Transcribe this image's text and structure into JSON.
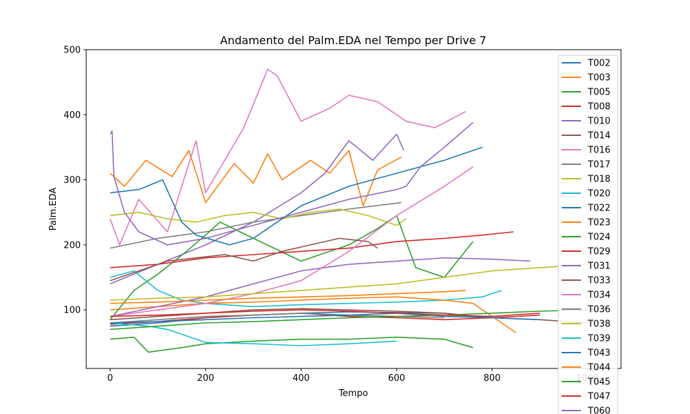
{
  "chart_data": {
    "type": "line",
    "title": "Andamento del Palm.EDA nel Tempo per Drive 7",
    "xlabel": "Tempo",
    "ylabel": "Palm.EDA",
    "xlim": [
      -50,
      1070
    ],
    "ylim": [
      10,
      500
    ],
    "xticks": [
      0,
      200,
      400,
      600,
      800,
      1000
    ],
    "xtick_labels": [
      "0",
      "200",
      "400",
      "600",
      "800",
      "1000"
    ],
    "yticks": [
      100,
      200,
      300,
      400,
      500
    ],
    "ytick_labels": [
      "100",
      "200",
      "300",
      "400",
      "500"
    ],
    "grid": false,
    "legend_position": "upper-right",
    "series": [
      {
        "name": "T002",
        "color": "#1f77b4",
        "x": [
          0,
          100,
          200,
          300,
          400,
          500,
          600,
          700,
          760
        ],
        "y": [
          75,
          80,
          88,
          92,
          95,
          97,
          96,
          95,
          90
        ]
      },
      {
        "name": "T003",
        "color": "#ff7f0e",
        "x": [
          0,
          30,
          75,
          130,
          165,
          200,
          260,
          300,
          330,
          360,
          420,
          460,
          500,
          530,
          560,
          610
        ],
        "y": [
          310,
          290,
          330,
          305,
          345,
          265,
          325,
          295,
          340,
          300,
          330,
          310,
          345,
          260,
          315,
          335
        ]
      },
      {
        "name": "T005",
        "color": "#2ca02c",
        "x": [
          0,
          50,
          80,
          150,
          200,
          300,
          400,
          500,
          600,
          700,
          760
        ],
        "y": [
          55,
          58,
          35,
          42,
          48,
          52,
          55,
          55,
          58,
          55,
          42
        ]
      },
      {
        "name": "T008",
        "color": "#d62728",
        "x": [
          0,
          100,
          200,
          300,
          400,
          500,
          600,
          700,
          800,
          900
        ],
        "y": [
          78,
          82,
          88,
          92,
          95,
          90,
          88,
          85,
          88,
          92
        ]
      },
      {
        "name": "T010",
        "color": "#9467bd",
        "x": [
          0,
          50,
          100,
          200,
          300,
          400,
          450,
          500,
          550,
          600,
          615
        ],
        "y": [
          140,
          155,
          170,
          200,
          235,
          280,
          310,
          360,
          330,
          370,
          345
        ]
      },
      {
        "name": "T014",
        "color": "#8c564b",
        "x": [
          0,
          100,
          200,
          300,
          400,
          500,
          600,
          700,
          800,
          900,
          1000,
          1040
        ],
        "y": [
          85,
          90,
          95,
          100,
          102,
          100,
          98,
          95,
          88,
          85,
          80,
          82
        ]
      },
      {
        "name": "T016",
        "color": "#e377c2",
        "x": [
          0,
          20,
          60,
          120,
          180,
          200,
          280,
          330,
          350,
          400,
          460,
          500,
          560,
          620,
          680,
          745
        ],
        "y": [
          240,
          200,
          270,
          220,
          360,
          280,
          380,
          470,
          460,
          390,
          410,
          430,
          420,
          390,
          380,
          405
        ]
      },
      {
        "name": "T017",
        "color": "#7f7f7f",
        "x": [
          0,
          100,
          200,
          300,
          400,
          500,
          610
        ],
        "y": [
          195,
          210,
          220,
          235,
          245,
          255,
          265
        ]
      },
      {
        "name": "T018",
        "color": "#bcbd22",
        "x": [
          0,
          60,
          120,
          180,
          240,
          300,
          360,
          420,
          480,
          540,
          600,
          620
        ],
        "y": [
          245,
          250,
          240,
          235,
          245,
          250,
          240,
          250,
          255,
          245,
          230,
          240
        ]
      },
      {
        "name": "T020",
        "color": "#17becf",
        "x": [
          0,
          50,
          100,
          150,
          200,
          300,
          400,
          500,
          600,
          700,
          780,
          820
        ],
        "y": [
          150,
          160,
          130,
          115,
          110,
          105,
          108,
          110,
          112,
          115,
          120,
          130
        ]
      },
      {
        "name": "T022",
        "color": "#1f77b4",
        "x": [
          0,
          60,
          110,
          150,
          180,
          250,
          300,
          400,
          500,
          600,
          700,
          780
        ],
        "y": [
          280,
          285,
          300,
          235,
          215,
          200,
          210,
          260,
          290,
          310,
          330,
          350
        ]
      },
      {
        "name": "T023",
        "color": "#ff7f0e",
        "x": [
          0,
          100,
          200,
          300,
          400,
          500,
          600,
          700,
          760,
          800,
          850
        ],
        "y": [
          100,
          105,
          110,
          112,
          115,
          118,
          120,
          115,
          110,
          90,
          65
        ]
      },
      {
        "name": "T024",
        "color": "#2ca02c",
        "x": [
          0,
          50,
          100,
          160,
          200,
          230,
          300,
          400,
          460,
          500,
          560,
          600,
          640,
          700,
          760
        ],
        "y": [
          85,
          130,
          155,
          190,
          215,
          235,
          210,
          175,
          190,
          200,
          225,
          245,
          165,
          150,
          205
        ]
      },
      {
        "name": "T029",
        "color": "#d62728",
        "x": [
          0,
          100,
          200,
          300,
          400,
          500,
          600,
          700,
          780,
          845
        ],
        "y": [
          165,
          170,
          180,
          185,
          190,
          195,
          205,
          210,
          215,
          220
        ]
      },
      {
        "name": "T031",
        "color": "#9467bd",
        "x": [
          0,
          100,
          200,
          300,
          400,
          500,
          600,
          700,
          800,
          880
        ],
        "y": [
          90,
          105,
          120,
          140,
          160,
          170,
          175,
          180,
          178,
          175
        ]
      },
      {
        "name": "T033",
        "color": "#8c564b",
        "x": [
          0,
          60,
          120,
          180,
          240,
          300,
          360,
          420,
          480,
          540,
          560
        ],
        "y": [
          145,
          160,
          175,
          180,
          185,
          175,
          190,
          200,
          210,
          205,
          195
        ]
      },
      {
        "name": "T034",
        "color": "#e377c2",
        "x": [
          0,
          100,
          200,
          300,
          400,
          500,
          600,
          700,
          760
        ],
        "y": [
          90,
          100,
          110,
          125,
          145,
          190,
          245,
          290,
          320
        ]
      },
      {
        "name": "T036",
        "color": "#7f7f7f",
        "x": [
          0,
          100,
          200,
          300,
          400,
          500,
          600,
          700
        ],
        "y": [
          80,
          85,
          90,
          92,
          95,
          92,
          90,
          88
        ]
      },
      {
        "name": "T038",
        "color": "#bcbd22",
        "x": [
          0,
          100,
          200,
          300,
          400,
          500,
          600,
          700,
          800,
          900,
          1000
        ],
        "y": [
          115,
          118,
          120,
          125,
          130,
          135,
          140,
          150,
          160,
          165,
          170
        ]
      },
      {
        "name": "T039",
        "color": "#17becf",
        "x": [
          0,
          80,
          120,
          180,
          200,
          300,
          400,
          500,
          600
        ],
        "y": [
          80,
          75,
          70,
          55,
          50,
          48,
          45,
          48,
          52
        ]
      },
      {
        "name": "T043",
        "color": "#1f77b4",
        "x": [
          0,
          100,
          200,
          300,
          400,
          500,
          600,
          700,
          800,
          900
        ],
        "y": [
          80,
          82,
          85,
          88,
          90,
          92,
          95,
          90,
          88,
          85
        ]
      },
      {
        "name": "T044",
        "color": "#ff7f0e",
        "x": [
          0,
          100,
          200,
          300,
          400,
          500,
          600,
          700,
          745
        ],
        "y": [
          110,
          112,
          115,
          118,
          120,
          122,
          125,
          128,
          130
        ]
      },
      {
        "name": "T045",
        "color": "#2ca02c",
        "x": [
          0,
          100,
          200,
          300,
          400,
          500,
          600,
          700,
          800,
          900,
          1000,
          1030
        ],
        "y": [
          70,
          75,
          80,
          82,
          85,
          88,
          90,
          92,
          95,
          98,
          100,
          102
        ]
      },
      {
        "name": "T047",
        "color": "#d62728",
        "x": [
          0,
          100,
          200,
          300,
          400,
          500,
          600,
          700,
          800,
          900
        ],
        "y": [
          90,
          92,
          95,
          98,
          100,
          98,
          95,
          92,
          90,
          95
        ]
      },
      {
        "name": "T060",
        "color": "#9467bd",
        "x": [
          0,
          4,
          8,
          30,
          60,
          120,
          200,
          300,
          400,
          500,
          600,
          620,
          650,
          700,
          760
        ],
        "y": [
          370,
          375,
          305,
          250,
          220,
          200,
          210,
          230,
          250,
          270,
          285,
          290,
          320,
          350,
          388
        ]
      }
    ]
  }
}
